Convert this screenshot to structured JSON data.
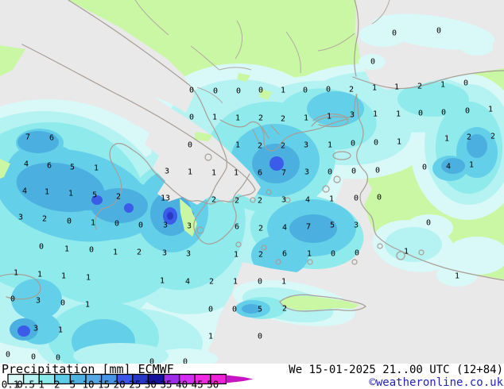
{
  "map": {
    "region_description": "ECMWF precipitation forecast map for Italy, Greece, Aegean Sea and Turkey",
    "value_unit": "mm",
    "palette": {
      "sea_no_precip": "#e9e9e9",
      "land_no_precip": "#c9f7a3",
      "coastline": "#a79e96",
      "value_text": "#000000"
    },
    "values": [
      [
        496,
        41,
        "0"
      ],
      [
        552,
        38,
        "0"
      ],
      [
        469,
        77,
        "0"
      ],
      [
        241,
        113,
        "0"
      ],
      [
        271,
        114,
        "0"
      ],
      [
        300,
        114,
        "0"
      ],
      [
        328,
        113,
        "0"
      ],
      [
        356,
        113,
        "1"
      ],
      [
        384,
        113,
        "0"
      ],
      [
        413,
        112,
        "0"
      ],
      [
        442,
        112,
        "2"
      ],
      [
        471,
        110,
        "1"
      ],
      [
        499,
        109,
        "1"
      ],
      [
        528,
        108,
        "2"
      ],
      [
        557,
        106,
        "1"
      ],
      [
        586,
        104,
        "0"
      ],
      [
        241,
        147,
        "0"
      ],
      [
        270,
        147,
        "1"
      ],
      [
        299,
        148,
        "1"
      ],
      [
        328,
        148,
        "2"
      ],
      [
        356,
        149,
        "2"
      ],
      [
        385,
        148,
        "1"
      ],
      [
        414,
        146,
        "1"
      ],
      [
        443,
        144,
        "3"
      ],
      [
        472,
        143,
        "1"
      ],
      [
        501,
        143,
        "1"
      ],
      [
        529,
        142,
        "0"
      ],
      [
        558,
        141,
        "0"
      ],
      [
        588,
        139,
        "0"
      ],
      [
        617,
        137,
        "1"
      ],
      [
        35,
        172,
        "7"
      ],
      [
        65,
        173,
        "6"
      ],
      [
        239,
        182,
        "0"
      ],
      [
        299,
        182,
        "1"
      ],
      [
        327,
        183,
        "2"
      ],
      [
        356,
        183,
        "2"
      ],
      [
        385,
        182,
        "3"
      ],
      [
        415,
        182,
        "1"
      ],
      [
        444,
        180,
        "0"
      ],
      [
        473,
        179,
        "0"
      ],
      [
        502,
        178,
        "1"
      ],
      [
        562,
        174,
        "1"
      ],
      [
        590,
        172,
        "2"
      ],
      [
        620,
        171,
        "2"
      ],
      [
        33,
        206,
        "4"
      ],
      [
        62,
        208,
        "6"
      ],
      [
        91,
        210,
        "5"
      ],
      [
        121,
        211,
        "1"
      ],
      [
        210,
        215,
        "3"
      ],
      [
        239,
        216,
        "1"
      ],
      [
        269,
        217,
        "1"
      ],
      [
        297,
        217,
        "1"
      ],
      [
        327,
        217,
        "6"
      ],
      [
        357,
        217,
        "7"
      ],
      [
        386,
        216,
        "3"
      ],
      [
        415,
        216,
        "0"
      ],
      [
        445,
        215,
        "0"
      ],
      [
        475,
        214,
        "0"
      ],
      [
        534,
        210,
        "0"
      ],
      [
        564,
        209,
        "4"
      ],
      [
        593,
        207,
        "1"
      ],
      [
        31,
        240,
        "4"
      ],
      [
        59,
        241,
        "1"
      ],
      [
        89,
        243,
        "1"
      ],
      [
        119,
        245,
        "5"
      ],
      [
        149,
        247,
        "2"
      ],
      [
        208,
        249,
        "13"
      ],
      [
        269,
        251,
        "2"
      ],
      [
        298,
        252,
        "2"
      ],
      [
        327,
        252,
        "2"
      ],
      [
        357,
        251,
        "3"
      ],
      [
        387,
        251,
        "4"
      ],
      [
        417,
        250,
        "1"
      ],
      [
        448,
        249,
        "0"
      ],
      [
        477,
        248,
        "0"
      ],
      [
        26,
        273,
        "3"
      ],
      [
        56,
        275,
        "2"
      ],
      [
        87,
        278,
        "0"
      ],
      [
        117,
        280,
        "1"
      ],
      [
        147,
        281,
        "0"
      ],
      [
        177,
        283,
        "0"
      ],
      [
        208,
        283,
        "3"
      ],
      [
        238,
        284,
        "3"
      ],
      [
        298,
        285,
        "6"
      ],
      [
        328,
        287,
        "2"
      ],
      [
        358,
        286,
        "4"
      ],
      [
        388,
        285,
        "7"
      ],
      [
        418,
        283,
        "5"
      ],
      [
        448,
        283,
        "3"
      ],
      [
        539,
        280,
        "0"
      ],
      [
        52,
        310,
        "0"
      ],
      [
        84,
        313,
        "1"
      ],
      [
        115,
        314,
        "0"
      ],
      [
        145,
        317,
        "1"
      ],
      [
        175,
        317,
        "2"
      ],
      [
        207,
        318,
        "3"
      ],
      [
        237,
        319,
        "3"
      ],
      [
        297,
        320,
        "1"
      ],
      [
        328,
        320,
        "2"
      ],
      [
        358,
        319,
        "6"
      ],
      [
        389,
        319,
        "1"
      ],
      [
        419,
        319,
        "0"
      ],
      [
        449,
        318,
        "0"
      ],
      [
        511,
        316,
        "1"
      ],
      [
        20,
        343,
        "1"
      ],
      [
        50,
        345,
        "1"
      ],
      [
        80,
        347,
        "1"
      ],
      [
        111,
        349,
        "1"
      ],
      [
        204,
        353,
        "1"
      ],
      [
        236,
        354,
        "4"
      ],
      [
        266,
        354,
        "2"
      ],
      [
        296,
        354,
        "1"
      ],
      [
        327,
        354,
        "0"
      ],
      [
        357,
        354,
        "1"
      ],
      [
        575,
        347,
        "1"
      ],
      [
        16,
        376,
        "0"
      ],
      [
        48,
        378,
        "3"
      ],
      [
        79,
        381,
        "0"
      ],
      [
        110,
        383,
        "1"
      ],
      [
        265,
        389,
        "0"
      ],
      [
        295,
        389,
        "0"
      ],
      [
        327,
        389,
        "5"
      ],
      [
        358,
        388,
        "2"
      ],
      [
        45,
        413,
        "3"
      ],
      [
        76,
        415,
        "1"
      ],
      [
        265,
        423,
        "1"
      ],
      [
        327,
        423,
        "0"
      ],
      [
        10,
        446,
        "0"
      ],
      [
        42,
        449,
        "0"
      ],
      [
        73,
        450,
        "0"
      ],
      [
        191,
        455,
        "0"
      ],
      [
        233,
        455,
        "0"
      ]
    ]
  },
  "legend": {
    "title_full": "Precipitation [mm] ECMWF",
    "ticks": [
      "0.1",
      "0.5",
      "1",
      "2",
      "5",
      "10",
      "15",
      "20",
      "25",
      "30",
      "35",
      "40",
      "45",
      "50"
    ],
    "colors": [
      "#d8f8f8",
      "#b2f2f2",
      "#8ceaea",
      "#5ccde6",
      "#4fb2e2",
      "#55a8e4",
      "#4795e6",
      "#3a55e8",
      "#2637c8",
      "#14129c",
      "#9e2cea",
      "#d32cf2",
      "#f02ae2"
    ],
    "overflow_color": "#ee22d6",
    "arrow_color": "#c914c4"
  },
  "footer": {
    "datetime": "We 15-01-2025 21..00 UTC (12+84)",
    "copyright": "©weatheronline.co.uk",
    "copyright_color": "#2323b8"
  }
}
